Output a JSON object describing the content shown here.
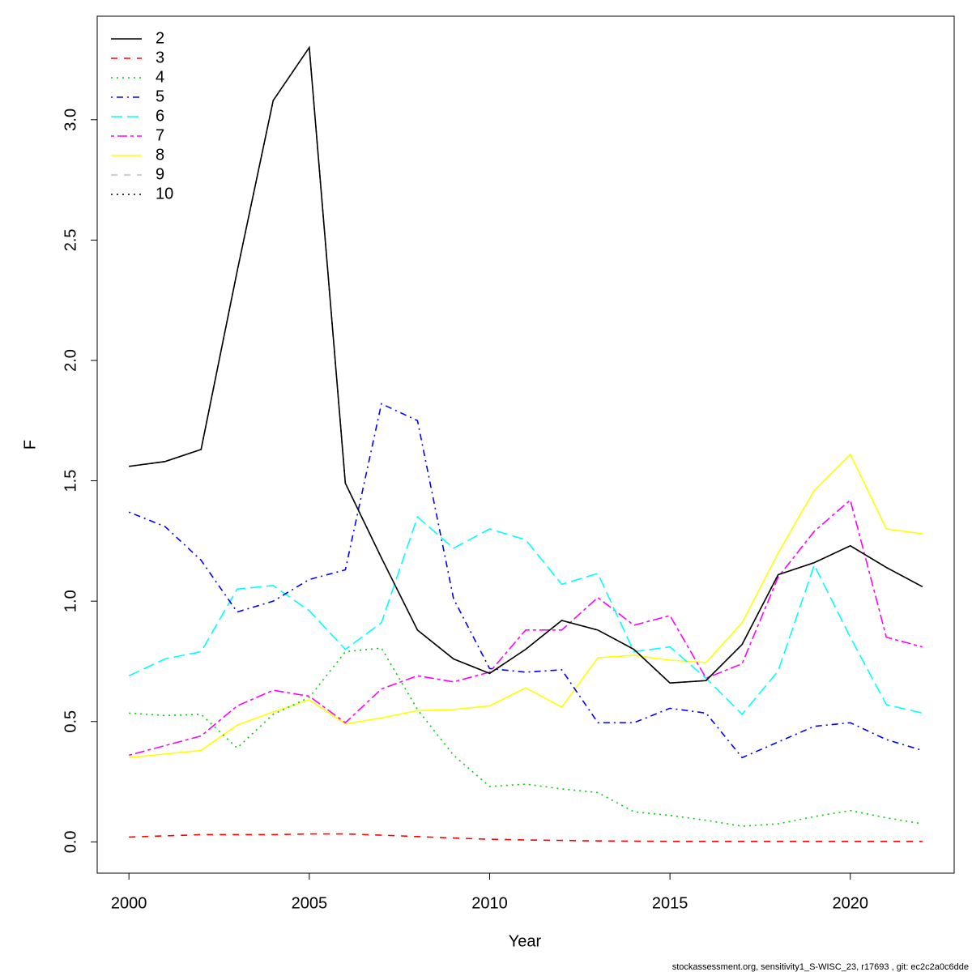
{
  "chart_data": {
    "type": "line",
    "xlabel": "Year",
    "ylabel": "F",
    "footnote": "stockassessment.org, sensitivity1_S-WISC_23, r17693 , git: ec2c2a0c6dde",
    "x": [
      2000,
      2001,
      2002,
      2003,
      2004,
      2005,
      2006,
      2007,
      2008,
      2009,
      2010,
      2011,
      2012,
      2013,
      2014,
      2015,
      2016,
      2017,
      2018,
      2019,
      2020,
      2021,
      2022
    ],
    "xlim": [
      1999.12,
      2022.88
    ],
    "xticks": [
      2000,
      2005,
      2010,
      2015,
      2020
    ],
    "ylim": [
      -0.13,
      3.43
    ],
    "yticks": [
      {
        "value": 0,
        "label": "0.0"
      },
      0.5,
      {
        "value": 1,
        "label": "1.0"
      },
      1.5,
      {
        "value": 2,
        "label": "2.0"
      },
      2.5,
      {
        "value": 3,
        "label": "3.0"
      }
    ],
    "legend": "top-left",
    "series": [
      {
        "name": "2",
        "color": "#000000",
        "dash": "solid",
        "values": [
          1.56,
          1.58,
          1.63,
          2.37,
          3.08,
          3.3,
          1.49,
          1.18,
          0.88,
          0.76,
          0.7,
          0.8,
          0.92,
          0.88,
          0.8,
          0.66,
          0.67,
          0.82,
          1.11,
          1.16,
          1.23,
          1.14,
          1.06
        ]
      },
      {
        "name": "3",
        "color": "#ff0000",
        "dash": "dashed",
        "values": [
          0.02,
          0.025,
          0.03,
          0.03,
          0.03,
          0.033,
          0.033,
          0.028,
          0.022,
          0.016,
          0.011,
          0.008,
          0.006,
          0.004,
          0.003,
          0.002,
          0.002,
          0.002,
          0.002,
          0.002,
          0.002,
          0.002,
          0.002
        ]
      },
      {
        "name": "4",
        "color": "#00cd00",
        "dash": "dotted",
        "values": [
          0.535,
          0.525,
          0.53,
          0.39,
          0.53,
          0.6,
          0.79,
          0.805,
          0.55,
          0.36,
          0.23,
          0.24,
          0.22,
          0.205,
          0.125,
          0.11,
          0.09,
          0.065,
          0.075,
          0.105,
          0.13,
          0.1,
          0.075
        ]
      },
      {
        "name": "5",
        "color": "#0000ff",
        "dash": "dotdash",
        "values": [
          1.37,
          1.31,
          1.17,
          0.955,
          1.0,
          1.09,
          1.13,
          1.82,
          1.75,
          1.01,
          0.72,
          0.705,
          0.715,
          0.495,
          0.495,
          0.555,
          0.535,
          0.35,
          0.415,
          0.48,
          0.495,
          0.425,
          0.38
        ]
      },
      {
        "name": "6",
        "color": "#00ffff",
        "dash": "longdash",
        "values": [
          0.69,
          0.76,
          0.79,
          1.05,
          1.065,
          0.96,
          0.8,
          0.91,
          1.35,
          1.22,
          1.3,
          1.255,
          1.07,
          1.115,
          0.79,
          0.81,
          0.68,
          0.53,
          0.71,
          1.15,
          0.85,
          0.57,
          0.535
        ]
      },
      {
        "name": "7",
        "color": "#ff00ff",
        "dash": "twodash",
        "values": [
          0.36,
          0.4,
          0.44,
          0.565,
          0.63,
          0.605,
          0.495,
          0.635,
          0.69,
          0.665,
          0.705,
          0.88,
          0.88,
          1.015,
          0.9,
          0.94,
          0.68,
          0.74,
          1.1,
          1.29,
          1.42,
          0.85,
          0.81
        ]
      },
      {
        "name": "8",
        "color": "#ffff00",
        "dash": "solid",
        "values": [
          0.35,
          0.365,
          0.38,
          0.485,
          0.54,
          0.59,
          0.49,
          0.515,
          0.545,
          0.55,
          0.565,
          0.64,
          0.56,
          0.765,
          0.775,
          0.755,
          0.745,
          0.91,
          1.2,
          1.46,
          1.61,
          1.3,
          1.28
        ]
      },
      {
        "name": "9",
        "color": "#bebebe",
        "dash": "dashed",
        "values": [
          1.56,
          1.58,
          1.63,
          2.37,
          3.08,
          3.3,
          1.49,
          1.18,
          0.88,
          0.76,
          0.7,
          0.8,
          0.92,
          0.88,
          0.8,
          0.66,
          0.67,
          0.82,
          1.11,
          1.16,
          1.23,
          1.14,
          1.06
        ]
      },
      {
        "name": "10",
        "color": "#000000",
        "dash": "dotted",
        "values": [
          1.56,
          1.58,
          1.63,
          2.37,
          3.08,
          3.3,
          1.49,
          1.18,
          0.88,
          0.76,
          0.7,
          0.8,
          0.92,
          0.88,
          0.8,
          0.66,
          0.67,
          0.82,
          1.11,
          1.16,
          1.23,
          1.14,
          1.06
        ]
      }
    ]
  }
}
